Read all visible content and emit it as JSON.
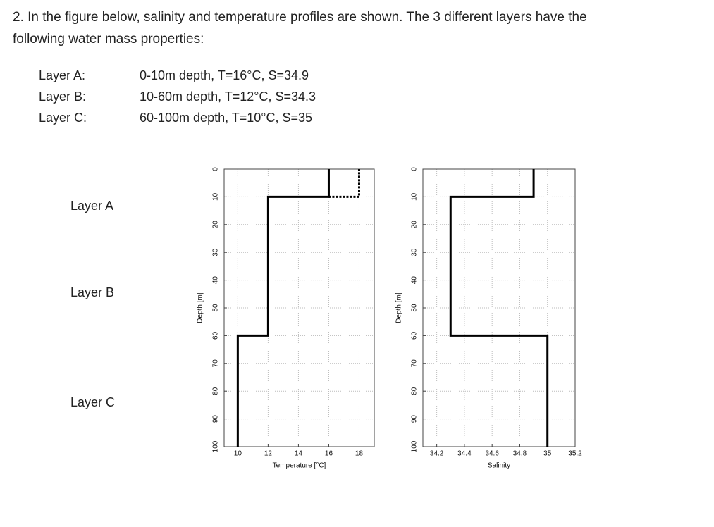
{
  "question": [
    "2. In the figure below, salinity and temperature profiles are shown. The 3 different layers have the",
    "following water mass properties:"
  ],
  "layers": [
    {
      "name": "Layer A:",
      "properties": "0-10m depth, T=16°C, S=34.9"
    },
    {
      "name": "Layer B:",
      "properties": "10-60m depth, T=12°C, S=34.3"
    },
    {
      "name": "Layer C:",
      "properties": "60-100m depth, T=10°C, S=35"
    }
  ],
  "side_labels": [
    "Layer A",
    "Layer B",
    "Layer C"
  ],
  "chart_data": [
    {
      "type": "line",
      "x_label": "Temperature [°C]",
      "y_label": "Depth [m]",
      "xlim": [
        9.1,
        19
      ],
      "xticks": [
        10,
        12,
        14,
        16,
        18
      ],
      "ylim": [
        0,
        100
      ],
      "yticks": [
        0,
        10,
        20,
        30,
        40,
        50,
        60,
        70,
        80,
        90,
        100
      ],
      "y_inverted": true,
      "grid": true,
      "series": [
        {
          "color": "#000000",
          "style": "solid",
          "x": [
            16,
            16,
            12,
            12,
            10,
            10
          ],
          "values": [
            0,
            10,
            10,
            60,
            60,
            100
          ]
        },
        {
          "color": "#000000",
          "style": "dashed",
          "x": [
            16,
            18,
            18
          ],
          "values": [
            10,
            10,
            0
          ]
        }
      ]
    },
    {
      "type": "line",
      "x_label": "Salinity",
      "y_label": "Depth [m]",
      "xlim": [
        34.1,
        35.2
      ],
      "xticks": [
        34.2,
        34.4,
        34.6,
        34.8,
        35,
        35.2
      ],
      "ylim": [
        0,
        100
      ],
      "yticks": [
        0,
        10,
        20,
        30,
        40,
        50,
        60,
        70,
        80,
        90,
        100
      ],
      "y_inverted": true,
      "grid": true,
      "series": [
        {
          "color": "#000000",
          "style": "solid",
          "x": [
            34.9,
            34.9,
            34.3,
            34.3,
            35,
            35
          ],
          "values": [
            0,
            10,
            10,
            60,
            60,
            100
          ]
        }
      ]
    }
  ]
}
